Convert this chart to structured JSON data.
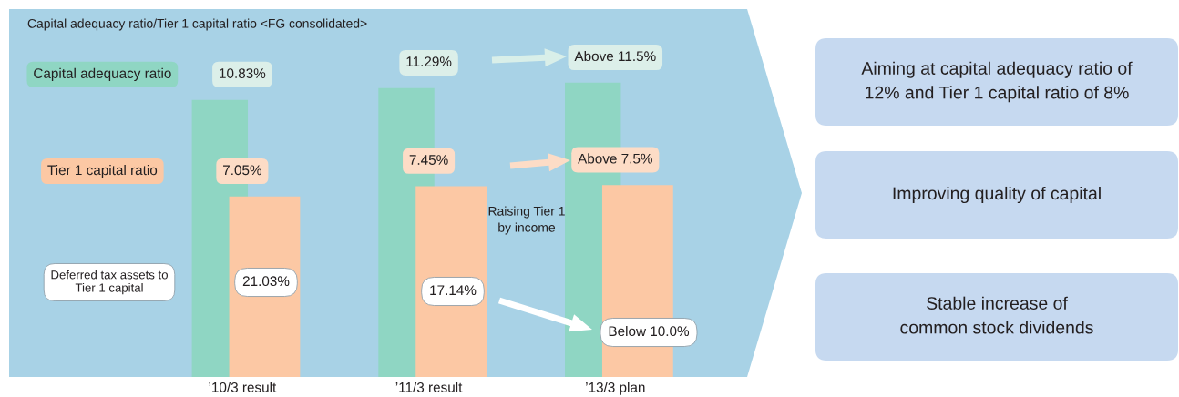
{
  "chart_data": {
    "type": "bar",
    "title": "Capital adequacy ratio/Tier 1 capital ratio <FG consolidated>",
    "categories": [
      "’10/3 result",
      "’11/3 result",
      "’13/3 plan"
    ],
    "series": [
      {
        "name": "Capital adequacy ratio",
        "color": "#8fd6c3",
        "values": [
          10.83,
          11.29,
          11.5
        ],
        "value_labels": [
          "10.83%",
          "11.29%",
          "Above 11.5%"
        ]
      },
      {
        "name": "Tier 1 capital ratio",
        "color": "#fcc8a4",
        "values": [
          7.05,
          7.45,
          7.5
        ],
        "value_labels": [
          "7.05%",
          "7.45%",
          "Above 7.5%"
        ]
      }
    ],
    "tick_labels": "x",
    "annotations": [
      "Deferred tax assets to\nTier 1 capital",
      "21.03%",
      "17.14%",
      "Below 10.0%",
      "Raising Tier 1\nby income",
      "Aiming at capital adequacy ratio of\n12% and Tier 1 capital ratio of 8%",
      "Improving quality of capital",
      "Stable increase of\ncommon stock dividends"
    ]
  }
}
